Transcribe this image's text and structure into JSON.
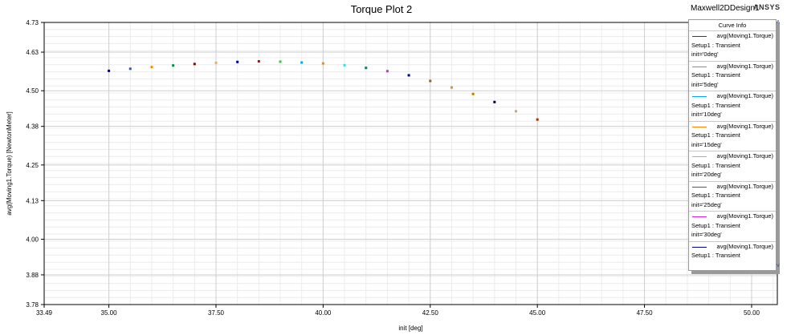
{
  "header": {
    "title": "Torque Plot 2",
    "design_name": "Maxwell2DDesign1",
    "brand": "ANSYS"
  },
  "legend": {
    "header": "Curve Info",
    "entries": [
      {
        "series": "avg(Moving1.Torque)",
        "setup": "Setup1 : Transient",
        "param": "init='0deg'",
        "color": "#cc0000"
      },
      {
        "series": "avg(Moving1.Torque)",
        "setup": "Setup1 : Transient",
        "param": "init='5deg'",
        "color": "#33cc33"
      },
      {
        "series": "avg(Moving1.Torque)",
        "setup": "Setup1 : Transient",
        "param": "init='10deg'",
        "color": "#00aaee"
      },
      {
        "series": "avg(Moving1.Torque)",
        "setup": "Setup1 : Transient",
        "param": "init='15deg'",
        "color": "#ff8800"
      },
      {
        "series": "avg(Moving1.Torque)",
        "setup": "Setup1 : Transient",
        "param": "init='20deg'",
        "color": "#33e0e0"
      },
      {
        "series": "avg(Moving1.Torque)",
        "setup": "Setup1 : Transient",
        "param": "init='25deg'",
        "color": "#008844"
      },
      {
        "series": "avg(Moving1.Torque)",
        "setup": "Setup1 : Transient",
        "param": "init='30deg'",
        "color": "#dd22dd"
      },
      {
        "series": "avg(Moving1.Torque)",
        "setup": "Setup1 : Transient",
        "param": "",
        "color": "#000088"
      }
    ]
  },
  "chart_data": {
    "type": "scatter",
    "title": "Torque Plot 2",
    "xlabel": "init [deg]",
    "ylabel": "avg(Moving1.Torque) [NewtonMeter]",
    "xlim": [
      33.49,
      50.6
    ],
    "ylim": [
      3.78,
      4.73
    ],
    "x_ticks": [
      "33.49",
      "35.00",
      "37.50",
      "40.00",
      "42.50",
      "45.00",
      "47.50",
      "50.00"
    ],
    "x_tick_values": [
      33.49,
      35.0,
      37.5,
      40.0,
      42.5,
      45.0,
      47.5,
      50.0
    ],
    "y_ticks": [
      "3.78",
      "3.88",
      "4.00",
      "4.13",
      "4.25",
      "4.38",
      "4.50",
      "4.63",
      "4.73"
    ],
    "y_tick_values": [
      3.78,
      3.88,
      4.0,
      4.13,
      4.25,
      4.38,
      4.5,
      4.63,
      4.73
    ],
    "grid": true,
    "legend_position": "top-right",
    "points": [
      {
        "x": 35.0,
        "y": 4.567,
        "color": "#000088"
      },
      {
        "x": 35.5,
        "y": 4.574,
        "color": "#3355aa"
      },
      {
        "x": 36.0,
        "y": 4.58,
        "color": "#ff8800"
      },
      {
        "x": 36.5,
        "y": 4.585,
        "color": "#008844"
      },
      {
        "x": 37.0,
        "y": 4.59,
        "color": "#880000"
      },
      {
        "x": 37.5,
        "y": 4.594,
        "color": "#ffaa44"
      },
      {
        "x": 38.0,
        "y": 4.597,
        "color": "#000088"
      },
      {
        "x": 38.5,
        "y": 4.599,
        "color": "#cc0000"
      },
      {
        "x": 39.0,
        "y": 4.598,
        "color": "#33cc33"
      },
      {
        "x": 39.5,
        "y": 4.595,
        "color": "#00aaee"
      },
      {
        "x": 40.0,
        "y": 4.592,
        "color": "#ff8800"
      },
      {
        "x": 40.5,
        "y": 4.586,
        "color": "#33e0e0"
      },
      {
        "x": 41.0,
        "y": 4.577,
        "color": "#008844"
      },
      {
        "x": 41.5,
        "y": 4.566,
        "color": "#dd22dd"
      },
      {
        "x": 42.0,
        "y": 4.552,
        "color": "#000088"
      },
      {
        "x": 42.5,
        "y": 4.533,
        "color": "#886633"
      },
      {
        "x": 43.0,
        "y": 4.511,
        "color": "#cc9933"
      },
      {
        "x": 43.5,
        "y": 4.489,
        "color": "#aa8800"
      },
      {
        "x": 44.0,
        "y": 4.462,
        "color": "#000033"
      },
      {
        "x": 44.5,
        "y": 4.431,
        "color": "#ccaa66"
      },
      {
        "x": 45.0,
        "y": 4.403,
        "color": "#aa3300"
      }
    ]
  }
}
